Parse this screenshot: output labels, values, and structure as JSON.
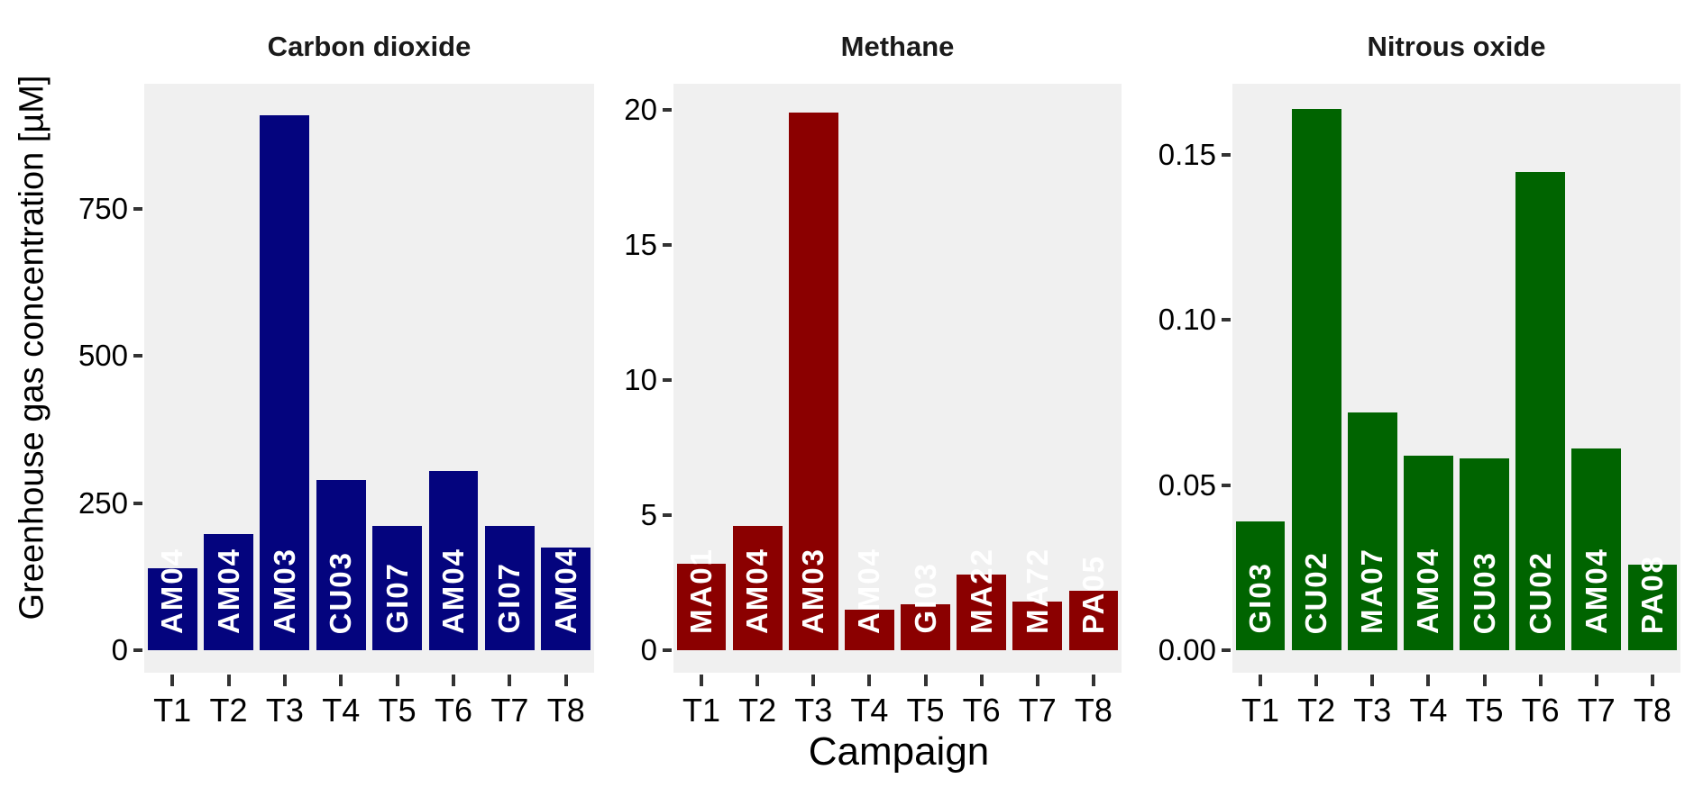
{
  "figure": {
    "y_axis_label": "Greenhouse gas concentration [µM]",
    "x_axis_label": "Campaign",
    "panel_background": "#F0F0F0",
    "tick_color": "#333333",
    "text_color": "#000000",
    "bar_label_color": "#FFFFFF"
  },
  "chart_data": [
    {
      "type": "bar",
      "title": "Carbon dioxide",
      "bar_color": "#04047E",
      "categories": [
        "T1",
        "T2",
        "T3",
        "T4",
        "T5",
        "T6",
        "T7",
        "T8"
      ],
      "bar_labels": [
        "AM04",
        "AM04",
        "AM03",
        "CU03",
        "GI07",
        "AM04",
        "GI07",
        "AM04"
      ],
      "values": [
        140,
        198,
        910,
        290,
        212,
        305,
        212,
        174
      ],
      "yticks": [
        {
          "v": 0,
          "label": "0"
        },
        {
          "v": 250,
          "label": "250"
        },
        {
          "v": 500,
          "label": "500"
        },
        {
          "v": 750,
          "label": "750"
        }
      ],
      "ylim": [
        0,
        963
      ],
      "grid": "off",
      "legend": "none"
    },
    {
      "type": "bar",
      "title": "Methane",
      "bar_color": "#8B0000",
      "categories": [
        "T1",
        "T2",
        "T3",
        "T4",
        "T5",
        "T6",
        "T7",
        "T8"
      ],
      "bar_labels": [
        "MA01",
        "AM04",
        "AM03",
        "AM04",
        "GI03",
        "MA22",
        "MA72",
        "PA05"
      ],
      "values": [
        3.2,
        4.6,
        19.9,
        1.5,
        1.7,
        2.8,
        1.8,
        2.2
      ],
      "yticks": [
        {
          "v": 0,
          "label": "0"
        },
        {
          "v": 5,
          "label": "5"
        },
        {
          "v": 10,
          "label": "10"
        },
        {
          "v": 15,
          "label": "15"
        },
        {
          "v": 20,
          "label": "20"
        }
      ],
      "ylim": [
        0,
        20.97
      ],
      "grid": "off",
      "legend": "none"
    },
    {
      "type": "bar",
      "title": "Nitrous oxide",
      "bar_color": "#006400",
      "categories": [
        "T1",
        "T2",
        "T3",
        "T4",
        "T5",
        "T6",
        "T7",
        "T8"
      ],
      "bar_labels": [
        "GI03",
        "CU02",
        "MA07",
        "AM04",
        "CU03",
        "CU02",
        "AM04",
        "PA08"
      ],
      "values": [
        0.039,
        0.164,
        0.072,
        0.059,
        0.058,
        0.145,
        0.061,
        0.026
      ],
      "yticks": [
        {
          "v": 0,
          "label": "0.00"
        },
        {
          "v": 0.05,
          "label": "0.05"
        },
        {
          "v": 0.1,
          "label": "0.10"
        },
        {
          "v": 0.15,
          "label": "0.15"
        }
      ],
      "ylim": [
        0,
        0.1716
      ],
      "grid": "off",
      "legend": "none"
    }
  ]
}
